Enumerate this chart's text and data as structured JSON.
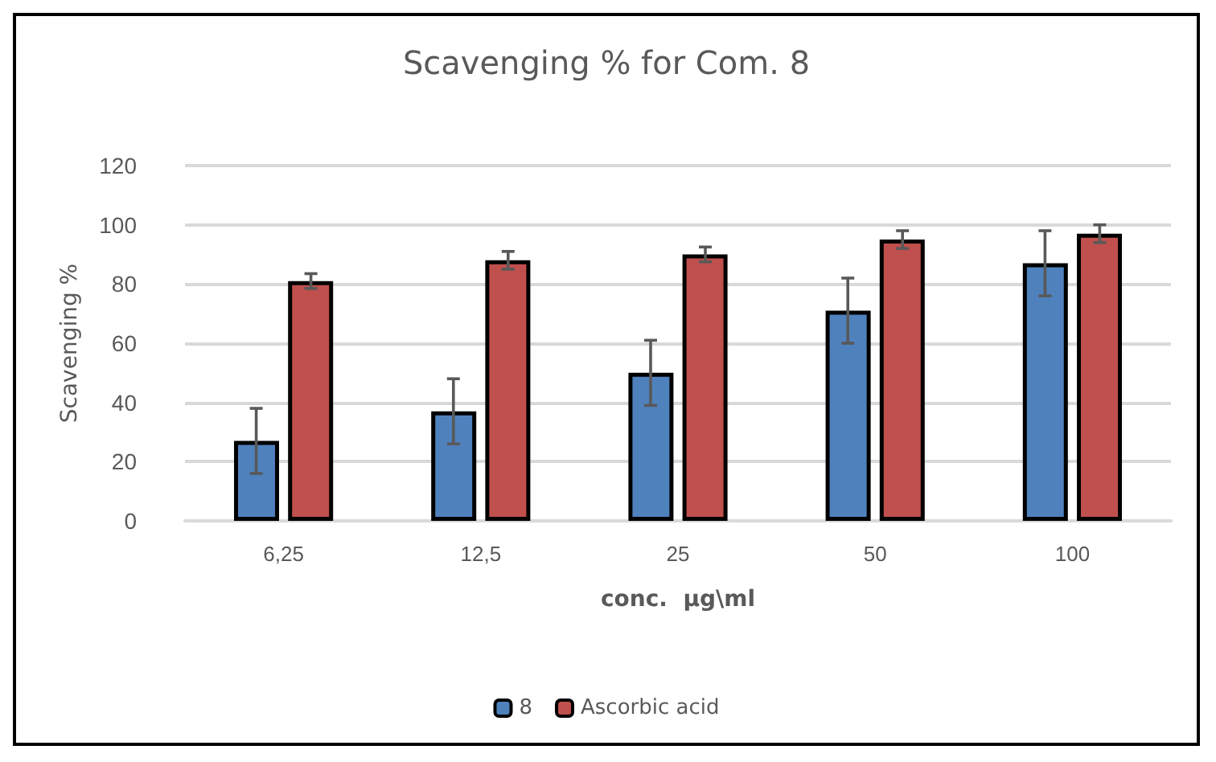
{
  "chart_data": {
    "type": "bar",
    "title": "Scavenging % for Com. 8",
    "xlabel": "conc.  µg\\ml",
    "ylabel": "Scavenging %",
    "categories": [
      "6,25",
      "12,5",
      "25",
      "50",
      "100"
    ],
    "series": [
      {
        "name": "8",
        "color": "#4f81bd",
        "values": [
          27,
          37,
          50,
          71,
          87
        ],
        "errors": [
          11,
          11,
          11,
          11,
          11
        ]
      },
      {
        "name": "Ascorbic acid",
        "color": "#c0504d",
        "values": [
          81,
          88,
          90,
          95,
          97
        ],
        "errors": [
          2.5,
          3,
          2.5,
          3,
          3
        ]
      }
    ],
    "ylim": [
      0,
      120
    ],
    "yticks": [
      0,
      20,
      40,
      60,
      80,
      100,
      120
    ],
    "grid": "y",
    "legend": "bottom"
  }
}
